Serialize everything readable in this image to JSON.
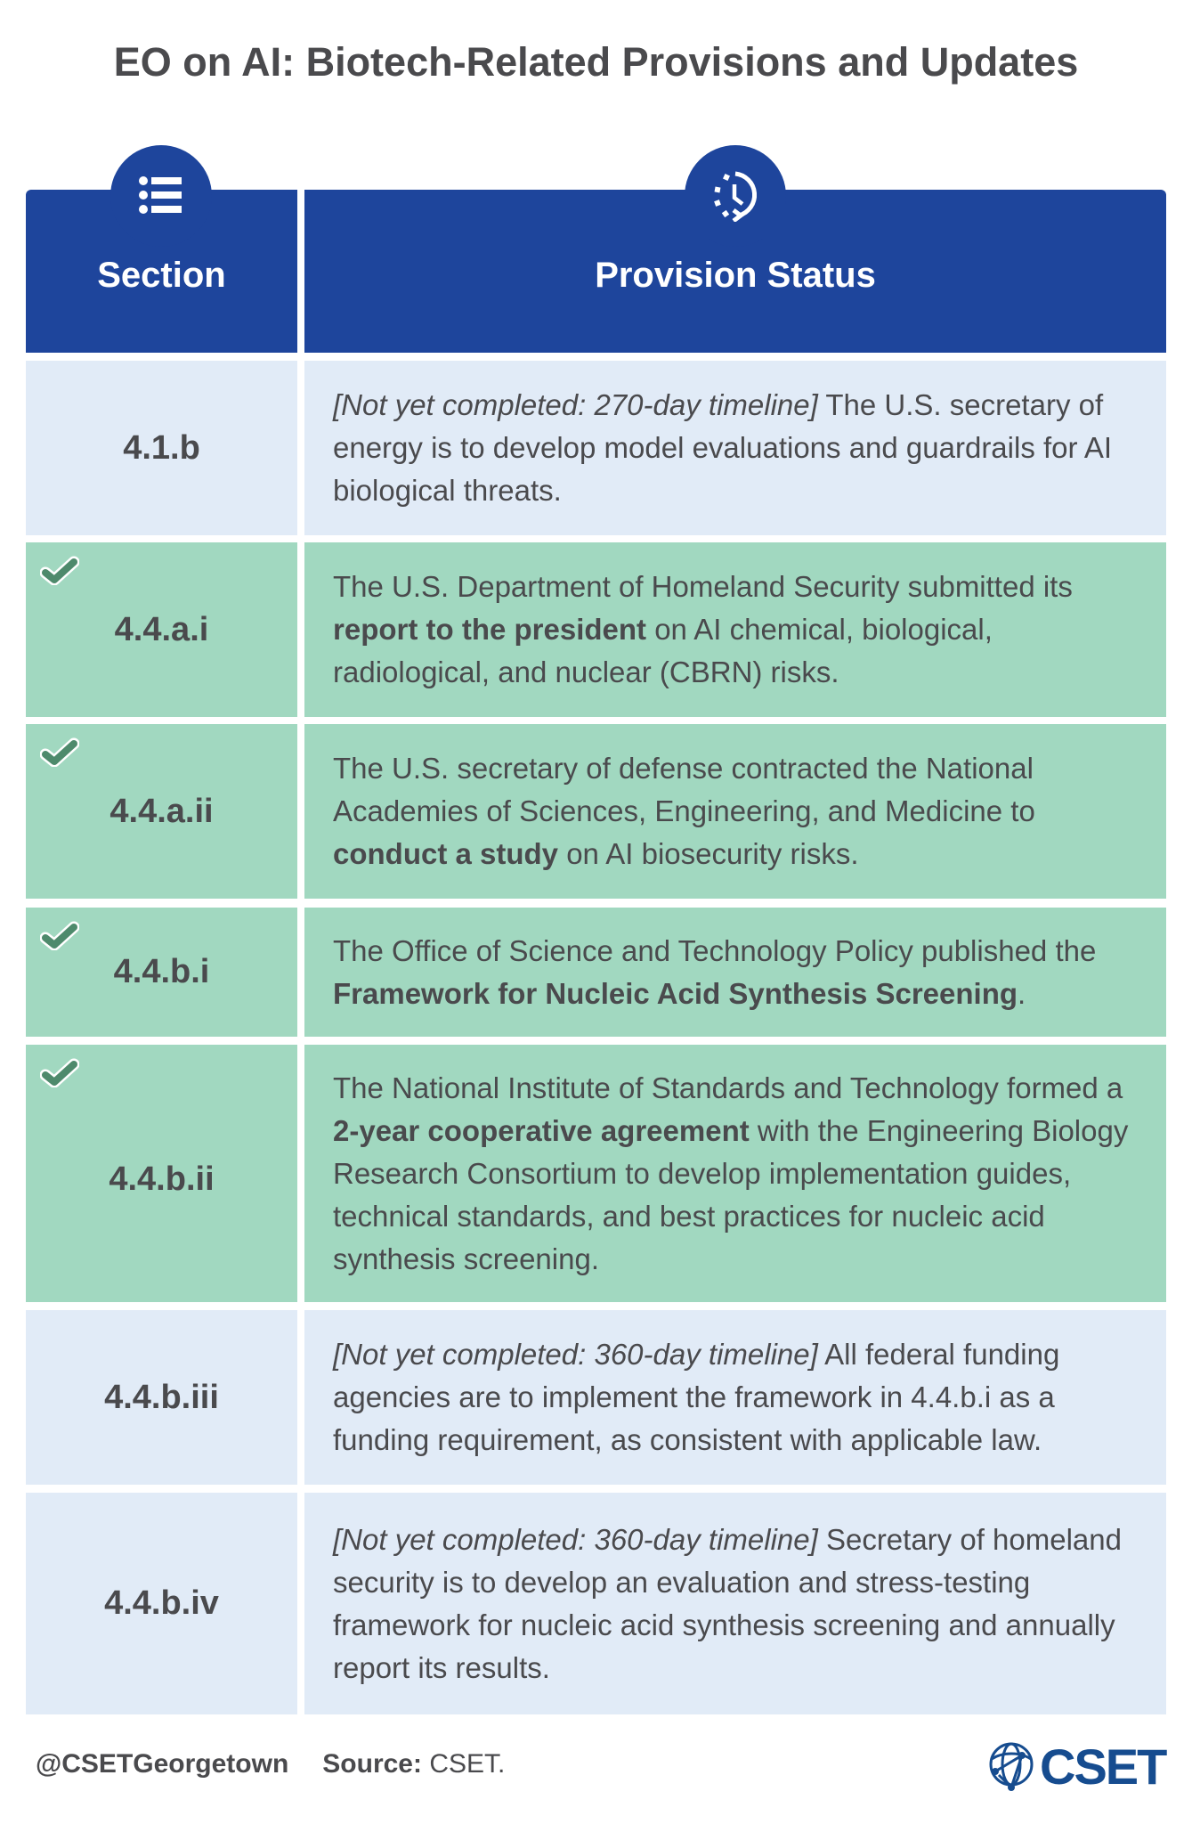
{
  "title": "EO on AI: Biotech-Related Provisions and Updates",
  "header": {
    "section_label": "Section",
    "status_label": "Provision Status",
    "section_icon": "list-icon",
    "status_icon": "history-clock-icon"
  },
  "colors": {
    "header_blue": "#1e459c",
    "pending_bg": "#e1ebf7",
    "completed_bg": "#a1d8c0",
    "check_green": "#4e8a6c",
    "text": "#4a4a4d",
    "logo_blue": "#164c8f"
  },
  "rows": [
    {
      "section": "4.1.b",
      "status": "pending",
      "parts": [
        {
          "text": "[Not yet completed: 270-day timeline]",
          "style": "italic"
        },
        {
          "text": " The U.S. secretary of energy is to develop model evaluations and guardrails for AI biological threats.",
          "style": "normal"
        }
      ]
    },
    {
      "section": "4.4.a.i",
      "status": "completed",
      "parts": [
        {
          "text": "The U.S. Department of Homeland Security submitted its ",
          "style": "normal"
        },
        {
          "text": "report to the president",
          "style": "bold"
        },
        {
          "text": " on AI chemical, biological, radiological, and nuclear (CBRN) risks.",
          "style": "normal"
        }
      ]
    },
    {
      "section": "4.4.a.ii",
      "status": "completed",
      "parts": [
        {
          "text": "The U.S. secretary of defense contracted the National Academies of Sciences, Engineering, and Medicine to ",
          "style": "normal"
        },
        {
          "text": "conduct a study",
          "style": "bold"
        },
        {
          "text": " on AI biosecurity risks.",
          "style": "normal"
        }
      ]
    },
    {
      "section": "4.4.b.i",
      "status": "completed",
      "parts": [
        {
          "text": "The Office of Science and Technology Policy published the ",
          "style": "normal"
        },
        {
          "text": "Framework for Nucleic Acid Synthesis Screening",
          "style": "bold"
        },
        {
          "text": ".",
          "style": "normal"
        }
      ]
    },
    {
      "section": "4.4.b.ii",
      "status": "completed",
      "parts": [
        {
          "text": "The National Institute of Standards and Technology formed a ",
          "style": "normal"
        },
        {
          "text": "2-year cooperative agreement",
          "style": "bold"
        },
        {
          "text": " with the Engineering Biology Research Consortium to develop implementation guides, technical standards, and best practices for nucleic acid synthesis screening.",
          "style": "normal"
        }
      ]
    },
    {
      "section": "4.4.b.iii",
      "status": "pending",
      "parts": [
        {
          "text": "[Not yet completed: 360-day timeline]",
          "style": "italic"
        },
        {
          "text": " All federal funding agencies are to implement the framework in 4.4.b.i as a funding requirement, as consistent with applicable law.",
          "style": "normal"
        }
      ]
    },
    {
      "section": "4.4.b.iv",
      "status": "pending",
      "parts": [
        {
          "text": "[Not yet completed: 360-day timeline]",
          "style": "italic"
        },
        {
          "text": " Secretary of homeland security is to develop an evaluation and stress-testing framework for nucleic acid synthesis screening and annually report its results.",
          "style": "normal"
        }
      ]
    }
  ],
  "footer": {
    "handle": "@CSETGeorgetown",
    "source_label": "Source:",
    "source_value": " CSET.",
    "logo_text": "CSET",
    "logo_icon": "globe-network-icon"
  }
}
